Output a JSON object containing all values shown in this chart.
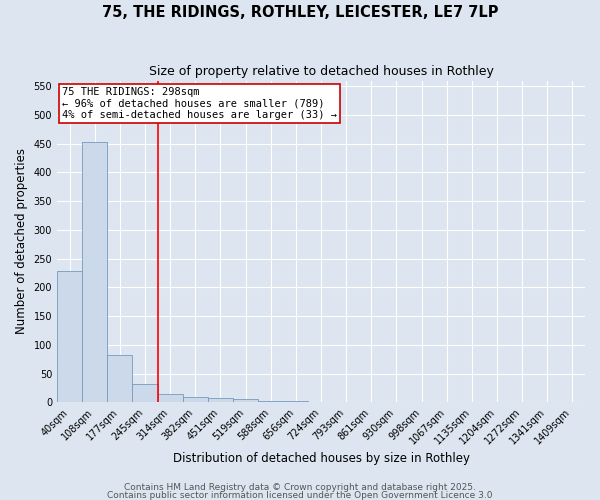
{
  "title1": "75, THE RIDINGS, ROTHLEY, LEICESTER, LE7 7LP",
  "title2": "Size of property relative to detached houses in Rothley",
  "xlabel": "Distribution of detached houses by size in Rothley",
  "ylabel": "Number of detached properties",
  "bin_labels": [
    "40sqm",
    "108sqm",
    "177sqm",
    "245sqm",
    "314sqm",
    "382sqm",
    "451sqm",
    "519sqm",
    "588sqm",
    "656sqm",
    "724sqm",
    "793sqm",
    "861sqm",
    "930sqm",
    "998sqm",
    "1067sqm",
    "1135sqm",
    "1204sqm",
    "1272sqm",
    "1341sqm",
    "1409sqm"
  ],
  "bar_heights": [
    228,
    453,
    83,
    32,
    15,
    10,
    7,
    5,
    3,
    2,
    1,
    1,
    1,
    0,
    1,
    0,
    1,
    0,
    0,
    1,
    0
  ],
  "bar_color": "#ccd9ea",
  "bar_edge_color": "#7799bb",
  "bg_color": "#dde6f0",
  "grid_color": "#ffffff",
  "red_line_x": 4.0,
  "annotation_text": "75 THE RIDINGS: 298sqm\n← 96% of detached houses are smaller (789)\n4% of semi-detached houses are larger (33) →",
  "annotation_box_color": "#ffffff",
  "annotation_box_edge": "#cc0000",
  "ylim": [
    0,
    560
  ],
  "yticks": [
    0,
    50,
    100,
    150,
    200,
    250,
    300,
    350,
    400,
    450,
    500,
    550
  ],
  "footer1": "Contains HM Land Registry data © Crown copyright and database right 2025.",
  "footer2": "Contains public sector information licensed under the Open Government Licence 3.0",
  "title_fontsize": 10.5,
  "subtitle_fontsize": 9,
  "axis_label_fontsize": 8.5,
  "tick_fontsize": 7,
  "annotation_fontsize": 7.5,
  "footer_fontsize": 6.5
}
